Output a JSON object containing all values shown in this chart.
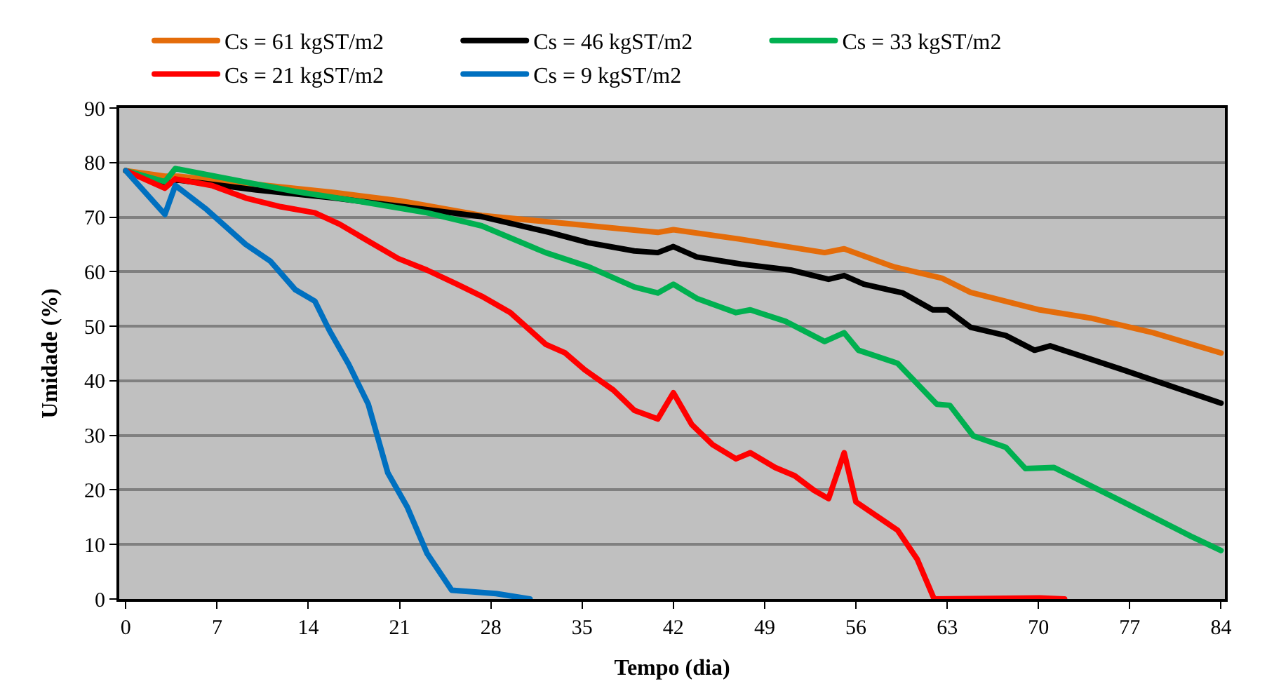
{
  "chart_data": {
    "type": "line",
    "xlabel": "Tempo (dia)",
    "ylabel": "Umidade (%)",
    "xlim": [
      -0.5,
      84.3
    ],
    "xticks": [
      0,
      7,
      14,
      21,
      28,
      35,
      42,
      49,
      56,
      63,
      70,
      77,
      84
    ],
    "ylim": [
      0,
      90
    ],
    "yticks": [
      0,
      10,
      20,
      30,
      40,
      50,
      60,
      70,
      80,
      90
    ],
    "grid": "y",
    "legend": "top",
    "marker": "none",
    "line_style": "solid",
    "series": [
      {
        "name": "Cs = 61 kgST/m2",
        "color": "#e46c0a",
        "x": [
          0,
          3,
          4,
          16,
          21,
          27.3,
          33,
          40.8,
          42,
          47,
          53.6,
          55.1,
          58.9,
          62.6,
          64.8,
          70.1,
          74,
          78.8,
          84
        ],
        "values": [
          78.5,
          77.5,
          77.5,
          74.5,
          73,
          70.3,
          69,
          67.2,
          67.7,
          66,
          63.5,
          64.2,
          60.9,
          58.8,
          56.2,
          53,
          51.5,
          48.8,
          45.1
        ]
      },
      {
        "name": "Cs = 46 kgST/m2",
        "color": "#000000",
        "x": [
          0,
          3,
          4,
          10,
          16,
          21,
          27.3,
          32.5,
          35.5,
          39,
          40.8,
          42,
          43.8,
          47.2,
          51,
          53.9,
          55.1,
          56.6,
          59.6,
          61.9,
          63,
          64.8,
          67.5,
          69.7,
          70.9,
          76.5,
          84
        ],
        "values": [
          78.5,
          76,
          76.8,
          75,
          73.5,
          72,
          70.1,
          67.2,
          65.3,
          63.8,
          63.5,
          64.6,
          62.7,
          61.4,
          60.3,
          58.6,
          59.3,
          57.7,
          56.1,
          53,
          53,
          49.8,
          48.3,
          45.6,
          46.4,
          42,
          35.9
        ]
      },
      {
        "name": "Cs = 33 kgST/m2",
        "color": "#00b050",
        "x": [
          0,
          3,
          3.8,
          9.2,
          13,
          17.9,
          23.1,
          27.3,
          32.2,
          35.5,
          39,
          40.8,
          42,
          43.8,
          46.8,
          47.9,
          50.6,
          53.6,
          55.1,
          56.2,
          59.2,
          62.2,
          63.2,
          65,
          67.5,
          69,
          71.2,
          76.5,
          81.7,
          84
        ],
        "values": [
          78.5,
          76.5,
          78.9,
          76.4,
          74.7,
          72.9,
          70.8,
          68.4,
          63.5,
          60.9,
          57.2,
          56.1,
          57.7,
          55.1,
          52.5,
          53,
          50.9,
          47.2,
          48.8,
          45.6,
          43.2,
          35.7,
          35.5,
          29.9,
          27.8,
          23.9,
          24.1,
          17.8,
          11.5,
          8.9
        ]
      },
      {
        "name": "Cs = 21 kgST/m2",
        "color": "#ff0000",
        "x": [
          0,
          3,
          3.8,
          6.6,
          9.2,
          11.9,
          14.5,
          16.4,
          18.6,
          20.9,
          23.1,
          25.4,
          27.3,
          29.5,
          32.2,
          33.7,
          35.2,
          37.4,
          39,
          40.8,
          42,
          43.4,
          45,
          46.8,
          47.9,
          49.8,
          51.3,
          52.8,
          53.9,
          55.1,
          56,
          59.2,
          60.7,
          62,
          70.1,
          72
        ],
        "values": [
          78.5,
          75.3,
          77,
          75.8,
          73.5,
          71.9,
          70.8,
          68.7,
          65.6,
          62.4,
          60.3,
          57.7,
          55.5,
          52.5,
          46.7,
          45.1,
          42,
          38.3,
          34.6,
          33,
          37.8,
          32,
          28.3,
          25.7,
          26.8,
          24.1,
          22.6,
          19.9,
          18.4,
          26.8,
          17.8,
          12.6,
          7.3,
          0,
          0.2,
          0
        ]
      },
      {
        "name": "Cs = 9 kgST/m2",
        "color": "#0070c0",
        "x": [
          0,
          3,
          3.8,
          6.2,
          9.2,
          11.1,
          13,
          14.5,
          15.6,
          17.1,
          18.6,
          20.1,
          21.6,
          23.1,
          25,
          28.4,
          31
        ],
        "values": [
          78.5,
          70.5,
          75.8,
          71.4,
          65,
          61.9,
          56.7,
          54.6,
          49.3,
          43,
          35.7,
          23.1,
          16.8,
          8.4,
          1.6,
          1.0,
          0
        ]
      }
    ]
  }
}
